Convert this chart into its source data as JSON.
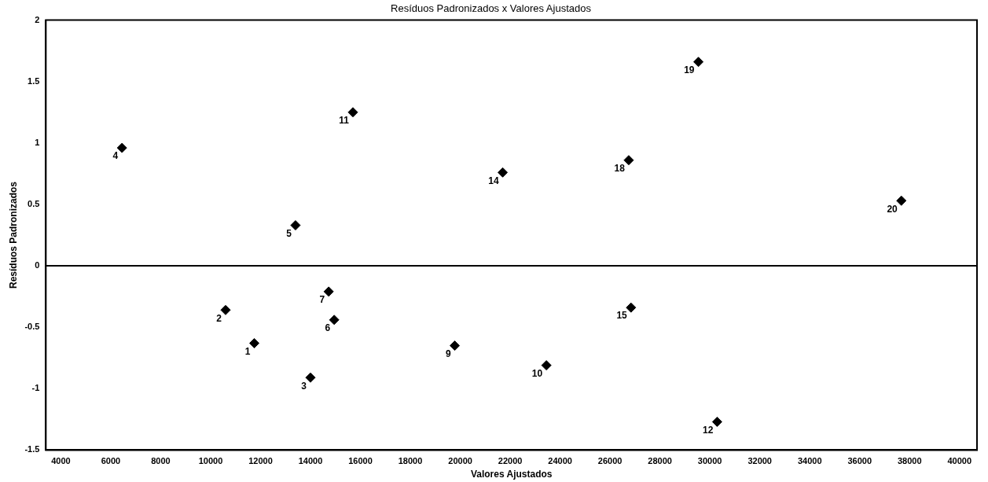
{
  "chart_data": {
    "type": "scatter",
    "title": "Resíduos Padronizados x Valores Ajustados",
    "xlabel": "Valores Ajustados",
    "ylabel": "Resíduos Padronizados",
    "x": [
      11750,
      10600,
      14000,
      6450,
      13400,
      14950,
      14730,
      19780,
      23450,
      15700,
      30290,
      21700,
      26840,
      26750,
      29540,
      37670
    ],
    "series": [
      {
        "color": "#000000",
        "values": [
          -0.63,
          -0.36,
          -0.91,
          0.96,
          0.33,
          -0.44,
          -0.21,
          -0.65,
          -0.81,
          1.25,
          -1.27,
          0.76,
          -0.34,
          0.86,
          1.66,
          0.53
        ]
      }
    ],
    "marker": "diamond",
    "grid": false,
    "legend": false,
    "xlim": [
      3400,
      40700
    ],
    "xticks": [
      4000,
      6000,
      8000,
      10000,
      12000,
      14000,
      16000,
      18000,
      20000,
      22000,
      24000,
      26000,
      28000,
      30000,
      32000,
      34000,
      36000,
      38000,
      40000
    ],
    "ylim": [
      -1.5,
      2
    ],
    "yticks": [
      -1.5,
      -1,
      -0.5,
      0,
      0.5,
      1,
      1.5,
      2
    ],
    "ref_lines": [
      {
        "axis": "y",
        "value": 0,
        "color": "#000000"
      }
    ],
    "annotations": [
      {
        "text": "1",
        "x": 11750,
        "y": -0.63
      },
      {
        "text": "2",
        "x": 10600,
        "y": -0.36
      },
      {
        "text": "3",
        "x": 14000,
        "y": -0.91
      },
      {
        "text": "4",
        "x": 6450,
        "y": 0.96
      },
      {
        "text": "5",
        "x": 13400,
        "y": 0.33
      },
      {
        "text": "6",
        "x": 14950,
        "y": -0.44
      },
      {
        "text": "7",
        "x": 14730,
        "y": -0.21
      },
      {
        "text": "9",
        "x": 19780,
        "y": -0.65
      },
      {
        "text": "10",
        "x": 23450,
        "y": -0.81
      },
      {
        "text": "11",
        "x": 15700,
        "y": 1.25
      },
      {
        "text": "12",
        "x": 30290,
        "y": -1.27
      },
      {
        "text": "14",
        "x": 21700,
        "y": 0.76
      },
      {
        "text": "15",
        "x": 26840,
        "y": -0.34
      },
      {
        "text": "18",
        "x": 26750,
        "y": 0.86
      },
      {
        "text": "19",
        "x": 29540,
        "y": 1.66
      },
      {
        "text": "20",
        "x": 37670,
        "y": 0.53
      }
    ]
  }
}
